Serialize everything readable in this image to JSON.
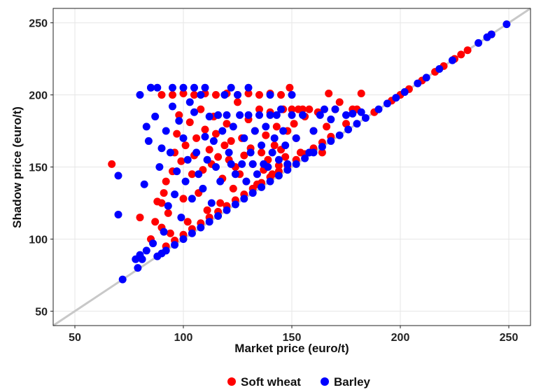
{
  "chart_data": {
    "type": "scatter",
    "title": "",
    "xlabel": "Market price (euro/t)",
    "ylabel": "Shadow price (euro/t)",
    "xlim": [
      40,
      260
    ],
    "ylim": [
      40,
      260
    ],
    "x_ticks": [
      50,
      100,
      150,
      200,
      250
    ],
    "y_ticks": [
      50,
      100,
      150,
      200,
      250
    ],
    "grid": true,
    "reference_line": "y = x",
    "legend_position": "bottom",
    "series": [
      {
        "name": "Soft wheat",
        "color": "#ff0000",
        "points": [
          [
            67,
            152
          ],
          [
            80,
            115
          ],
          [
            85,
            100
          ],
          [
            87,
            112
          ],
          [
            88,
            126
          ],
          [
            90,
            108
          ],
          [
            90,
            125
          ],
          [
            91,
            132
          ],
          [
            92,
            140
          ],
          [
            93,
            118
          ],
          [
            94,
            104
          ],
          [
            95,
            147
          ],
          [
            96,
            160
          ],
          [
            97,
            173
          ],
          [
            98,
            186
          ],
          [
            99,
            154
          ],
          [
            100,
            128
          ],
          [
            101,
            165
          ],
          [
            102,
            112
          ],
          [
            103,
            181
          ],
          [
            104,
            145
          ],
          [
            105,
            158
          ],
          [
            106,
            170
          ],
          [
            107,
            132
          ],
          [
            108,
            190
          ],
          [
            109,
            148
          ],
          [
            110,
            176
          ],
          [
            111,
            120
          ],
          [
            112,
            162
          ],
          [
            113,
            152
          ],
          [
            114,
            185
          ],
          [
            115,
            173
          ],
          [
            116,
            157
          ],
          [
            117,
            125
          ],
          [
            118,
            142
          ],
          [
            119,
            165
          ],
          [
            120,
            180
          ],
          [
            121,
            155
          ],
          [
            122,
            168
          ],
          [
            123,
            135
          ],
          [
            124,
            150
          ],
          [
            125,
            195
          ],
          [
            126,
            145
          ],
          [
            127,
            170
          ],
          [
            128,
            158
          ],
          [
            129,
            140
          ],
          [
            130,
            183
          ],
          [
            131,
            163
          ],
          [
            132,
            152
          ],
          [
            133,
            175
          ],
          [
            134,
            138
          ],
          [
            135,
            190
          ],
          [
            136,
            160
          ],
          [
            137,
            148
          ],
          [
            138,
            172
          ],
          [
            139,
            155
          ],
          [
            140,
            188
          ],
          [
            141,
            145
          ],
          [
            142,
            165
          ],
          [
            143,
            178
          ],
          [
            144,
            151
          ],
          [
            145,
            162
          ],
          [
            146,
            190
          ],
          [
            147,
            157
          ],
          [
            148,
            175
          ],
          [
            149,
            205
          ],
          [
            150,
            190
          ],
          [
            151,
            180
          ],
          [
            152,
            170
          ],
          [
            153,
            190
          ],
          [
            154,
            160
          ],
          [
            155,
            190
          ],
          [
            156,
            185
          ],
          [
            158,
            190
          ],
          [
            160,
            175
          ],
          [
            162,
            188
          ],
          [
            164,
            160
          ],
          [
            166,
            178
          ],
          [
            167,
            201
          ],
          [
            170,
            190
          ],
          [
            172,
            195
          ],
          [
            175,
            180
          ],
          [
            178,
            190
          ],
          [
            180,
            190
          ],
          [
            182,
            201
          ],
          [
            90,
            200
          ],
          [
            95,
            200
          ],
          [
            100,
            201
          ],
          [
            105,
            200
          ],
          [
            110,
            201
          ],
          [
            115,
            200
          ],
          [
            120,
            201
          ],
          [
            125,
            200
          ],
          [
            130,
            201
          ],
          [
            135,
            200
          ],
          [
            140,
            201
          ],
          [
            145,
            200
          ],
          [
            92,
            95
          ],
          [
            96,
            99
          ],
          [
            100,
            103
          ],
          [
            104,
            107
          ],
          [
            108,
            111
          ],
          [
            112,
            115
          ],
          [
            116,
            119
          ],
          [
            120,
            123
          ],
          [
            124,
            127
          ],
          [
            128,
            131
          ],
          [
            132,
            135
          ],
          [
            136,
            139
          ],
          [
            140,
            143
          ],
          [
            144,
            147
          ],
          [
            148,
            151
          ],
          [
            152,
            155
          ],
          [
            156,
            159
          ],
          [
            160,
            163
          ],
          [
            164,
            167
          ],
          [
            168,
            171
          ],
          [
            196,
            196
          ],
          [
            200,
            200
          ],
          [
            204,
            204
          ],
          [
            210,
            210
          ],
          [
            216,
            216
          ],
          [
            220,
            220
          ],
          [
            225,
            225
          ],
          [
            228,
            228
          ],
          [
            231,
            231
          ],
          [
            242,
            242
          ],
          [
            188,
            188
          ]
        ]
      },
      {
        "name": "Barley",
        "color": "#0000ff",
        "points": [
          [
            70,
            144
          ],
          [
            70,
            117
          ],
          [
            72,
            72
          ],
          [
            78,
            86
          ],
          [
            79,
            80
          ],
          [
            80,
            89
          ],
          [
            80,
            200
          ],
          [
            81,
            86
          ],
          [
            82,
            138
          ],
          [
            83,
            92
          ],
          [
            83,
            178
          ],
          [
            84,
            168
          ],
          [
            85,
            205
          ],
          [
            86,
            97
          ],
          [
            87,
            185
          ],
          [
            88,
            205
          ],
          [
            89,
            150
          ],
          [
            90,
            163
          ],
          [
            90,
            90
          ],
          [
            91,
            105
          ],
          [
            92,
            175
          ],
          [
            93,
            123
          ],
          [
            94,
            160
          ],
          [
            95,
            192
          ],
          [
            96,
            131
          ],
          [
            97,
            147
          ],
          [
            98,
            182
          ],
          [
            99,
            115
          ],
          [
            100,
            170
          ],
          [
            101,
            140
          ],
          [
            102,
            155
          ],
          [
            103,
            195
          ],
          [
            104,
            128
          ],
          [
            105,
            188
          ],
          [
            106,
            160
          ],
          [
            107,
            145
          ],
          [
            108,
            200
          ],
          [
            109,
            135
          ],
          [
            110,
            171
          ],
          [
            111,
            155
          ],
          [
            112,
            185
          ],
          [
            113,
            125
          ],
          [
            114,
            168
          ],
          [
            115,
            150
          ],
          [
            116,
            186
          ],
          [
            117,
            140
          ],
          [
            118,
            175
          ],
          [
            119,
            200
          ],
          [
            120,
            186
          ],
          [
            121,
            160
          ],
          [
            122,
            152
          ],
          [
            123,
            178
          ],
          [
            124,
            145
          ],
          [
            125,
            200
          ],
          [
            126,
            186
          ],
          [
            127,
            152
          ],
          [
            128,
            170
          ],
          [
            129,
            140
          ],
          [
            130,
            186
          ],
          [
            131,
            160
          ],
          [
            132,
            152
          ],
          [
            133,
            175
          ],
          [
            134,
            145
          ],
          [
            135,
            186
          ],
          [
            136,
            165
          ],
          [
            137,
            152
          ],
          [
            138,
            178
          ],
          [
            139,
            150
          ],
          [
            140,
            186
          ],
          [
            141,
            160
          ],
          [
            142,
            170
          ],
          [
            143,
            186
          ],
          [
            144,
            155
          ],
          [
            145,
            190
          ],
          [
            146,
            175
          ],
          [
            147,
            165
          ],
          [
            148,
            152
          ],
          [
            150,
            186
          ],
          [
            152,
            170
          ],
          [
            155,
            186
          ],
          [
            158,
            160
          ],
          [
            160,
            175
          ],
          [
            163,
            186
          ],
          [
            165,
            190
          ],
          [
            168,
            183
          ],
          [
            170,
            190
          ],
          [
            175,
            186
          ],
          [
            178,
            187
          ],
          [
            182,
            188
          ],
          [
            85,
            205
          ],
          [
            95,
            205
          ],
          [
            100,
            205
          ],
          [
            105,
            205
          ],
          [
            110,
            205
          ],
          [
            122,
            205
          ],
          [
            130,
            205
          ],
          [
            140,
            200
          ],
          [
            150,
            200
          ],
          [
            88,
            88
          ],
          [
            92,
            92
          ],
          [
            96,
            96
          ],
          [
            100,
            100
          ],
          [
            104,
            104
          ],
          [
            108,
            108
          ],
          [
            112,
            112
          ],
          [
            116,
            116
          ],
          [
            120,
            120
          ],
          [
            124,
            124
          ],
          [
            128,
            128
          ],
          [
            132,
            132
          ],
          [
            136,
            136
          ],
          [
            140,
            140
          ],
          [
            144,
            144
          ],
          [
            148,
            148
          ],
          [
            152,
            152
          ],
          [
            156,
            156
          ],
          [
            160,
            160
          ],
          [
            164,
            164
          ],
          [
            168,
            168
          ],
          [
            172,
            172
          ],
          [
            176,
            176
          ],
          [
            180,
            180
          ],
          [
            184,
            184
          ],
          [
            190,
            190
          ],
          [
            194,
            194
          ],
          [
            198,
            198
          ],
          [
            202,
            202
          ],
          [
            208,
            208
          ],
          [
            212,
            212
          ],
          [
            218,
            218
          ],
          [
            224,
            224
          ],
          [
            236,
            236
          ],
          [
            240,
            240
          ],
          [
            242,
            242
          ],
          [
            249,
            249
          ]
        ]
      }
    ]
  }
}
